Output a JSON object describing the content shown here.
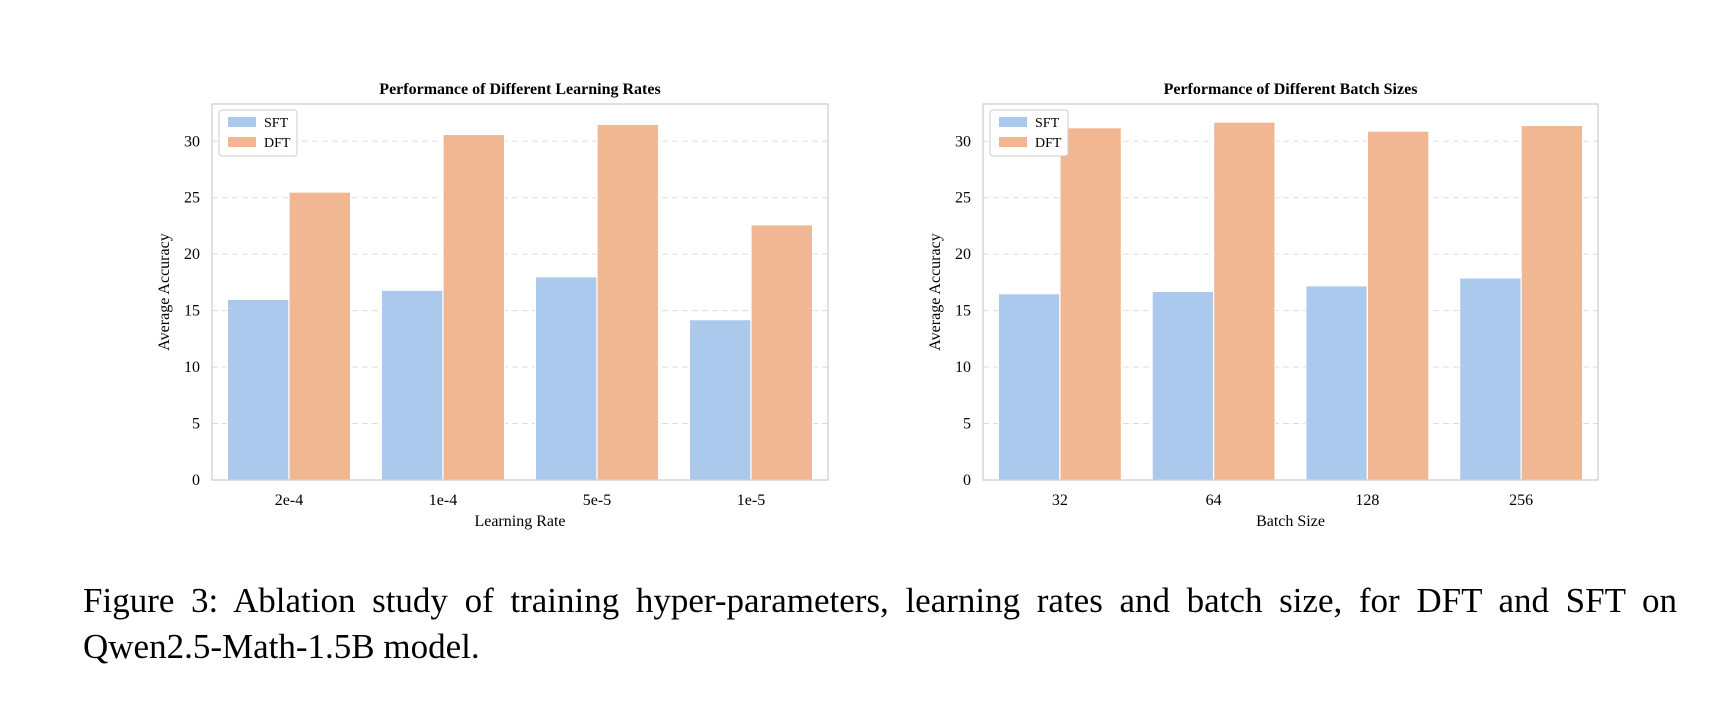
{
  "chart_data": [
    {
      "type": "bar",
      "title": "Performance of Different Learning Rates",
      "xlabel": "Learning Rate",
      "ylabel": "Average Accuracy",
      "categories": [
        "2e-4",
        "1e-4",
        "5e-5",
        "1e-5"
      ],
      "series": [
        {
          "name": "SFT",
          "values": [
            16.0,
            16.8,
            18.0,
            14.2
          ]
        },
        {
          "name": "DFT",
          "values": [
            25.5,
            30.6,
            31.5,
            22.6
          ]
        }
      ],
      "ylim": [
        0,
        33.3
      ],
      "yticks": [
        0,
        5,
        10,
        15,
        20,
        25,
        30
      ],
      "grid": true,
      "legend_position": "top-left"
    },
    {
      "type": "bar",
      "title": "Performance of Different Batch Sizes",
      "xlabel": "Batch Size",
      "ylabel": "Average Accuracy",
      "categories": [
        "32",
        "64",
        "128",
        "256"
      ],
      "series": [
        {
          "name": "SFT",
          "values": [
            16.5,
            16.7,
            17.2,
            17.9
          ]
        },
        {
          "name": "DFT",
          "values": [
            31.2,
            31.7,
            30.9,
            31.4
          ]
        }
      ],
      "ylim": [
        0,
        33.3
      ],
      "yticks": [
        0,
        5,
        10,
        15,
        20,
        25,
        30
      ],
      "grid": true,
      "legend_position": "top-left"
    }
  ],
  "colors": {
    "SFT": "#abc9ec",
    "DFT": "#f0b792",
    "grid": "#dddddd",
    "frame": "#cccccc"
  },
  "caption": "Figure 3: Ablation study of training hyper-parameters, learning rates and batch size, for DFT and SFT on Qwen2.5-Math-1.5B model."
}
